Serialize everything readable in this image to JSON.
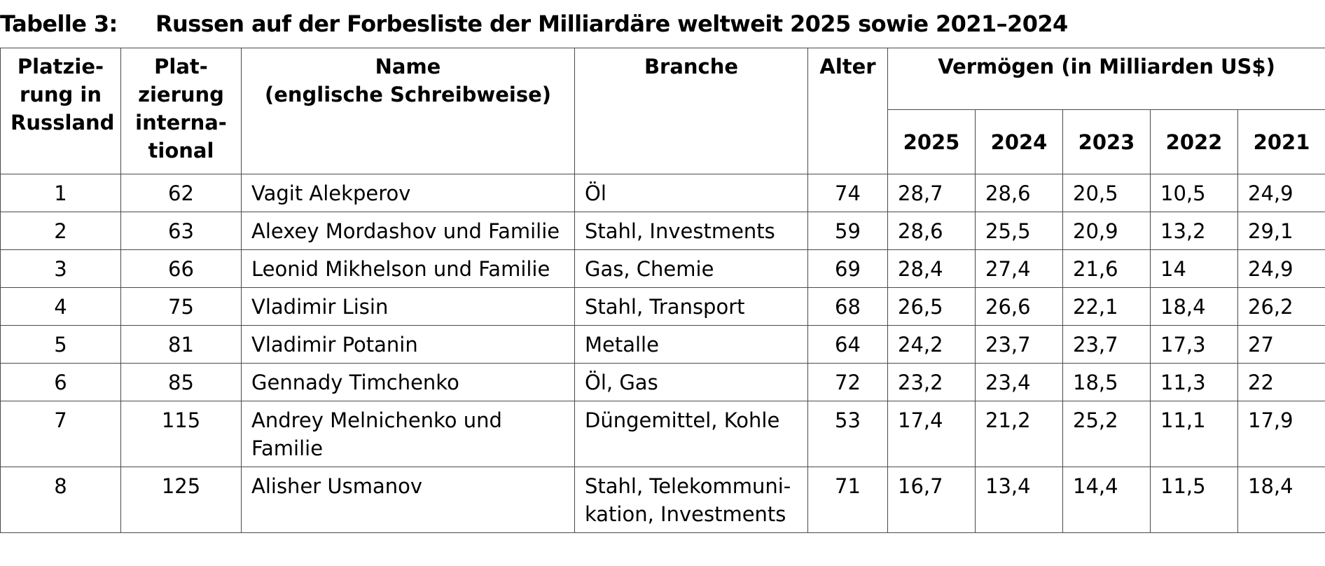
{
  "title": {
    "label": "Tabelle 3:",
    "text": "Russen auf der Forbesliste der Milliardäre weltweit 2025 sowie 2021–2024"
  },
  "table": {
    "headers": {
      "rank_russia": "Platzie-\nrung in\nRussland",
      "rank_international": "Plat-\nzierung\ninterna-\ntional",
      "name": "Name\n(englische Schreibweise)",
      "branch": "Branche",
      "age": "Alter",
      "wealth": "Vermögen (in Milliarden US$)",
      "years": [
        "2025",
        "2024",
        "2023",
        "2022",
        "2021"
      ]
    },
    "rows": [
      {
        "rank_ru": "1",
        "rank_int": "62",
        "name": "Vagit Alekperov",
        "branch": "Öl",
        "age": "74",
        "v2025": "28,7",
        "v2024": "28,6",
        "v2023": "20,5",
        "v2022": "10,5",
        "v2021": "24,9"
      },
      {
        "rank_ru": "2",
        "rank_int": "63",
        "name": "Alexey Mordashov und Familie",
        "branch": "Stahl, Investments",
        "age": "59",
        "v2025": "28,6",
        "v2024": "25,5",
        "v2023": "20,9",
        "v2022": "13,2",
        "v2021": "29,1"
      },
      {
        "rank_ru": "3",
        "rank_int": "66",
        "name": "Leonid Mikhelson und Familie",
        "branch": "Gas, Chemie",
        "age": "69",
        "v2025": "28,4",
        "v2024": "27,4",
        "v2023": "21,6",
        "v2022": "14",
        "v2021": "24,9"
      },
      {
        "rank_ru": "4",
        "rank_int": "75",
        "name": "Vladimir Lisin",
        "branch": "Stahl, Transport",
        "age": "68",
        "v2025": "26,5",
        "v2024": "26,6",
        "v2023": "22,1",
        "v2022": "18,4",
        "v2021": "26,2"
      },
      {
        "rank_ru": "5",
        "rank_int": "81",
        "name": "Vladimir Potanin",
        "branch": "Metalle",
        "age": "64",
        "v2025": "24,2",
        "v2024": "23,7",
        "v2023": "23,7",
        "v2022": "17,3",
        "v2021": "27"
      },
      {
        "rank_ru": "6",
        "rank_int": "85",
        "name": "Gennady Timchenko",
        "branch": "Öl, Gas",
        "age": "72",
        "v2025": "23,2",
        "v2024": "23,4",
        "v2023": "18,5",
        "v2022": "11,3",
        "v2021": "22"
      },
      {
        "rank_ru": "7",
        "rank_int": "115",
        "name": "Andrey Melnichenko und Familie",
        "branch": "Düngemittel, Kohle",
        "age": "53",
        "v2025": "17,4",
        "v2024": "21,2",
        "v2023": "25,2",
        "v2022": "11,1",
        "v2021": "17,9"
      },
      {
        "rank_ru": "8",
        "rank_int": "125",
        "name": "Alisher Usmanov",
        "branch": "Stahl, Telekommuni-\nkation, Investments",
        "age": "71",
        "v2025": "16,7",
        "v2024": "13,4",
        "v2023": "14,4",
        "v2022": "11,5",
        "v2021": "18,4"
      }
    ]
  }
}
